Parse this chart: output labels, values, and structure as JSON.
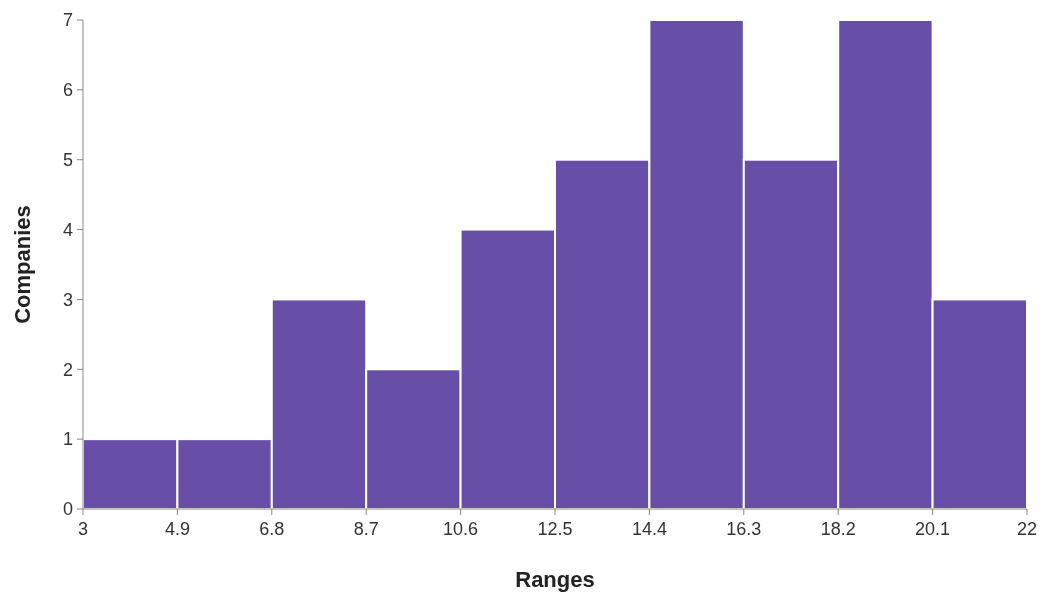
{
  "chart_data": {
    "type": "histogram",
    "xlabel": "Ranges",
    "ylabel": "Companies",
    "bins": [
      3,
      4.9,
      6.8,
      8.7,
      10.6,
      12.5,
      14.4,
      16.3,
      18.2,
      20.1,
      22
    ],
    "values": [
      1,
      1,
      3,
      2,
      4,
      5,
      7,
      5,
      7,
      3
    ],
    "color": "#674ea7",
    "xlim": [
      3,
      22
    ],
    "xticks": [
      3,
      4.9,
      6.8,
      8.7,
      10.6,
      12.5,
      14.4,
      16.3,
      18.2,
      20.1,
      22
    ],
    "ylim": [
      0,
      7
    ],
    "yticks": [
      0,
      1,
      2,
      3,
      4,
      5,
      6,
      7
    ]
  }
}
